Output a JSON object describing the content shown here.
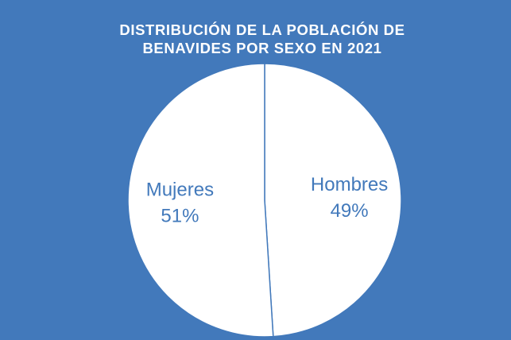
{
  "chart_data": {
    "type": "pie",
    "title": "DISTRIBUCIÓN DE LA POBLACIÓN DE BENAVIDES POR SEXO EN 2021",
    "categories": [
      "Hombres",
      "Mujeres"
    ],
    "values": [
      49,
      51
    ],
    "value_labels": [
      "49%",
      "51%"
    ],
    "colors": [
      "#ffffff",
      "#ffffff"
    ],
    "background": "#4279bb",
    "edge_color": "#4279bb"
  }
}
